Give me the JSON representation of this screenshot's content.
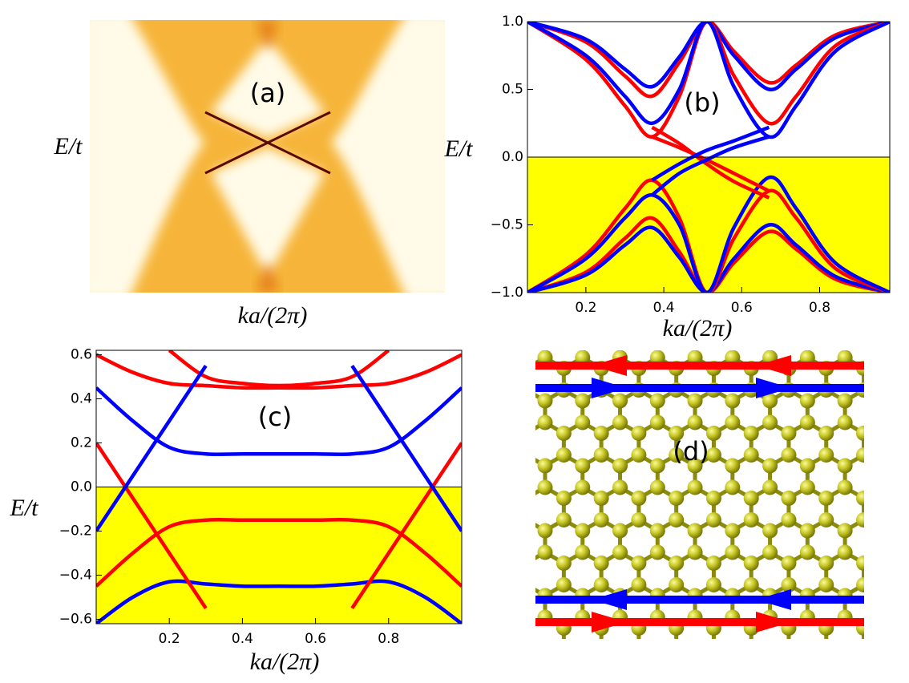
{
  "chart_data": [
    {
      "type": "heatmap",
      "label": "(a)",
      "xlabel": "ka/(2π)",
      "ylabel": "E/t"
    },
    {
      "type": "line",
      "label": "(b)",
      "xlabel": "ka/(2π)",
      "ylabel": "E/t",
      "xlim": [
        0.05,
        0.98
      ],
      "ylim": [
        -1.0,
        1.0
      ],
      "xticks": [
        0.2,
        0.4,
        0.6,
        0.8
      ],
      "yticks": [
        {
          "value": -1.0,
          "label": "−1.0"
        },
        {
          "value": -0.5,
          "label": "−0.5"
        },
        {
          "value": 0,
          "label": "0.0"
        },
        0.5,
        {
          "value": 1.0,
          "label": "1.0"
        }
      ],
      "fill_color": "#ffff00",
      "x": [
        0.05,
        0.2,
        0.3,
        0.37,
        0.44,
        0.51,
        0.58,
        0.67,
        0.74,
        0.84,
        0.98
      ],
      "series": [
        {
          "color": "#ff0000",
          "values": [
            1,
            0.85,
            0.6,
            0.45,
            0.7,
            1,
            0.78,
            0.55,
            0.68,
            0.9,
            1
          ]
        },
        {
          "color": "#0000ff",
          "values": [
            1,
            0.87,
            0.65,
            0.52,
            0.74,
            1,
            0.75,
            0.5,
            0.65,
            0.88,
            1
          ]
        },
        {
          "color": "#ff0000",
          "values": [
            1,
            0.72,
            0.38,
            0.15,
            0.45,
            1,
            0.6,
            0.25,
            0.45,
            0.82,
            1
          ]
        },
        {
          "color": "#0000ff",
          "values": [
            1,
            0.75,
            0.45,
            0.25,
            0.5,
            1,
            0.52,
            0.15,
            0.38,
            0.78,
            1
          ]
        },
        {
          "color": "#ff0000",
          "values": [
            -1,
            -0.85,
            -0.6,
            -0.45,
            -0.7,
            -1,
            -0.78,
            -0.55,
            -0.68,
            -0.9,
            -1
          ]
        },
        {
          "color": "#0000ff",
          "values": [
            -1,
            -0.87,
            -0.65,
            -0.52,
            -0.74,
            -1,
            -0.75,
            -0.5,
            -0.65,
            -0.88,
            -1
          ]
        },
        {
          "color": "#ff0000",
          "values": [
            -1,
            -0.72,
            -0.38,
            -0.17,
            -0.45,
            -1,
            -0.6,
            -0.25,
            -0.45,
            -0.82,
            -1
          ]
        },
        {
          "color": "#0000ff",
          "values": [
            -1,
            -0.75,
            -0.45,
            -0.28,
            -0.5,
            -1,
            -0.52,
            -0.15,
            -0.38,
            -0.78,
            -1
          ]
        },
        {
          "color": "#ff0000",
          "values": [
            null,
            null,
            null,
            0.15,
            0.07,
            -0.02,
            -0.12,
            -0.25,
            null,
            null,
            null
          ]
        },
        {
          "color": "#ff0000",
          "values": [
            null,
            null,
            null,
            0.22,
            0.1,
            -0.05,
            -0.18,
            -0.3,
            null,
            null,
            null
          ]
        },
        {
          "color": "#0000ff",
          "values": [
            null,
            null,
            null,
            -0.28,
            -0.12,
            -0.02,
            0.07,
            0.15,
            null,
            null,
            null
          ]
        },
        {
          "color": "#0000ff",
          "values": [
            null,
            null,
            null,
            -0.17,
            -0.05,
            0.05,
            0.12,
            0.22,
            null,
            null,
            null
          ]
        }
      ]
    },
    {
      "type": "line",
      "label": "(c)",
      "xlabel": "ka/(2π)",
      "ylabel": "E/t",
      "xlim": [
        0,
        1
      ],
      "ylim": [
        -0.62,
        0.62
      ],
      "xticks": [
        0.2,
        0.4,
        0.6,
        0.8
      ],
      "yticks": [
        {
          "value": -0.6,
          "label": "−0.6"
        },
        {
          "value": -0.4,
          "label": "−0.4"
        },
        {
          "value": -0.2,
          "label": "−0.2"
        },
        {
          "value": 0,
          "label": "0.0"
        },
        0.2,
        0.4,
        0.6
      ],
      "fill_color": "#ffff00",
      "x": [
        0,
        0.1,
        0.2,
        0.3,
        0.4,
        0.5,
        0.6,
        0.7,
        0.8,
        0.9,
        1
      ],
      "series": [
        {
          "color": "#ff0000",
          "values": [
            0.6,
            0.52,
            0.47,
            0.46,
            0.45,
            0.45,
            0.45,
            0.46,
            0.47,
            0.52,
            0.6
          ]
        },
        {
          "color": "#ff0000",
          "values": [
            null,
            null,
            0.62,
            0.5,
            0.47,
            0.46,
            0.47,
            0.5,
            0.62,
            null,
            null
          ]
        },
        {
          "color": "#0000ff",
          "values": [
            0.45,
            0.3,
            0.18,
            0.15,
            0.15,
            0.15,
            0.15,
            0.15,
            0.18,
            0.3,
            0.45
          ]
        },
        {
          "color": "#ff0000",
          "values": [
            -0.45,
            -0.3,
            -0.18,
            -0.15,
            -0.15,
            -0.15,
            -0.15,
            -0.15,
            -0.18,
            -0.3,
            -0.45
          ]
        },
        {
          "color": "#0000ff",
          "values": [
            -0.62,
            -0.5,
            -0.43,
            -0.44,
            -0.45,
            -0.45,
            -0.45,
            -0.44,
            -0.43,
            -0.5,
            -0.62
          ]
        },
        {
          "color": "#ff0000",
          "values": [
            0.2,
            -0.05,
            -0.3,
            -0.55,
            null,
            null,
            null,
            null,
            null,
            null,
            null
          ]
        },
        {
          "color": "#0000ff",
          "values": [
            -0.2,
            0.05,
            0.3,
            0.55,
            null,
            null,
            null,
            null,
            null,
            null,
            null
          ]
        },
        {
          "color": "#ff0000",
          "values": [
            null,
            null,
            null,
            null,
            null,
            null,
            null,
            -0.55,
            -0.3,
            -0.05,
            0.2
          ]
        },
        {
          "color": "#0000ff",
          "values": [
            null,
            null,
            null,
            null,
            null,
            null,
            null,
            0.55,
            0.3,
            0.05,
            -0.2
          ]
        }
      ]
    },
    {
      "type": "lattice",
      "label": "(d)"
    }
  ]
}
